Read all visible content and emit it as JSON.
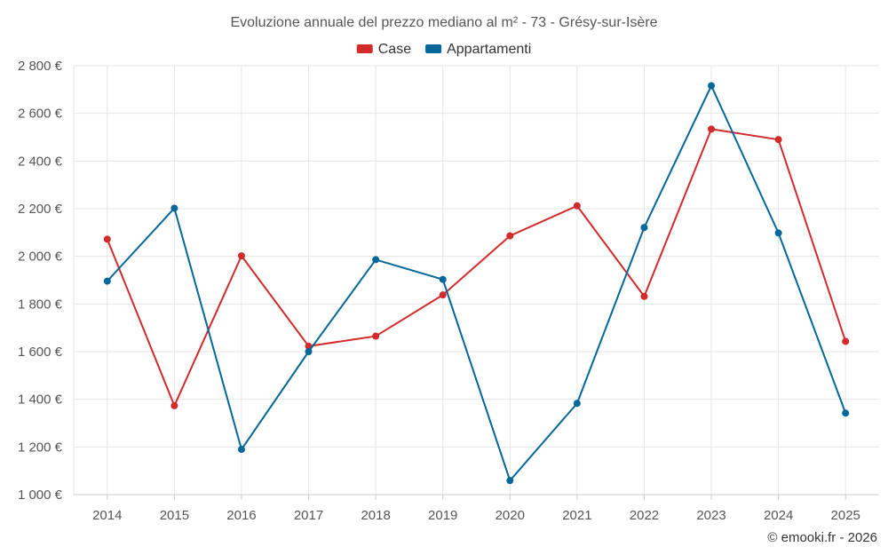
{
  "chart_data": {
    "type": "line",
    "title": "Evoluzione annuale del prezzo mediano al m² - 73 - Grésy-sur-Isère",
    "categories": [
      "2014",
      "2015",
      "2016",
      "2017",
      "2018",
      "2019",
      "2020",
      "2021",
      "2022",
      "2023",
      "2024",
      "2025"
    ],
    "series": [
      {
        "name": "Case",
        "color": "#d12b2b",
        "values": [
          2072,
          1373,
          2002,
          1623,
          1665,
          1838,
          2086,
          2212,
          1832,
          2534,
          2490,
          1643
        ]
      },
      {
        "name": "Appartamenti",
        "color": "#03679a",
        "values": [
          1896,
          2202,
          1190,
          1600,
          1986,
          1903,
          1059,
          1383,
          2121,
          2716,
          2098,
          1342
        ]
      }
    ],
    "yticks": [
      1000,
      1200,
      1400,
      1600,
      1800,
      2000,
      2200,
      2400,
      2600,
      2800
    ],
    "ytick_labels": [
      "1 000 €",
      "1 200 €",
      "1 400 €",
      "1 600 €",
      "1 800 €",
      "2 000 €",
      "2 200 €",
      "2 400 €",
      "2 600 €",
      "2 800 €"
    ],
    "ylim": [
      1000,
      2800
    ],
    "xlabel": "",
    "ylabel": "",
    "grid": true,
    "legend_position": "top-center"
  },
  "credit": "© emooki.fr - 2026"
}
